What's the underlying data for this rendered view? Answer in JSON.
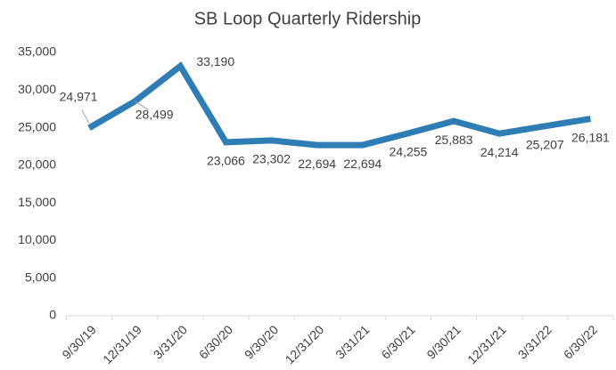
{
  "chart_data": {
    "type": "line",
    "title": "SB Loop Quarterly Ridership",
    "categories": [
      "9/30/19",
      "12/31/19",
      "3/31/20",
      "6/30/20",
      "9/30/20",
      "12/31/20",
      "3/31/21",
      "6/30/21",
      "9/30/21",
      "12/31/21",
      "3/31/22",
      "6/30/22"
    ],
    "series": [
      {
        "name": "Ridership",
        "color": "#2e7db5",
        "values": [
          24971,
          28499,
          33190,
          23066,
          23302,
          22694,
          22694,
          24255,
          25883,
          24214,
          25207,
          26181
        ],
        "value_labels": [
          "24,971",
          "28,499",
          "33,190",
          "23,066",
          "23,302",
          "22,694",
          "22,694",
          "24,255",
          "25,883",
          "24,214",
          "25,207",
          "26,181"
        ]
      }
    ],
    "ylim": [
      0,
      35000
    ],
    "yticks": [
      0,
      {
        "value": 5000,
        "label": "5,000"
      },
      {
        "value": 10000,
        "label": "10,000"
      },
      {
        "value": 15000,
        "label": "15,000"
      },
      {
        "value": 20000,
        "label": "20,000"
      },
      {
        "value": 25000,
        "label": "25,000"
      },
      {
        "value": 30000,
        "label": "30,000"
      },
      {
        "value": 35000,
        "label": "35,000"
      }
    ],
    "grid": false
  }
}
